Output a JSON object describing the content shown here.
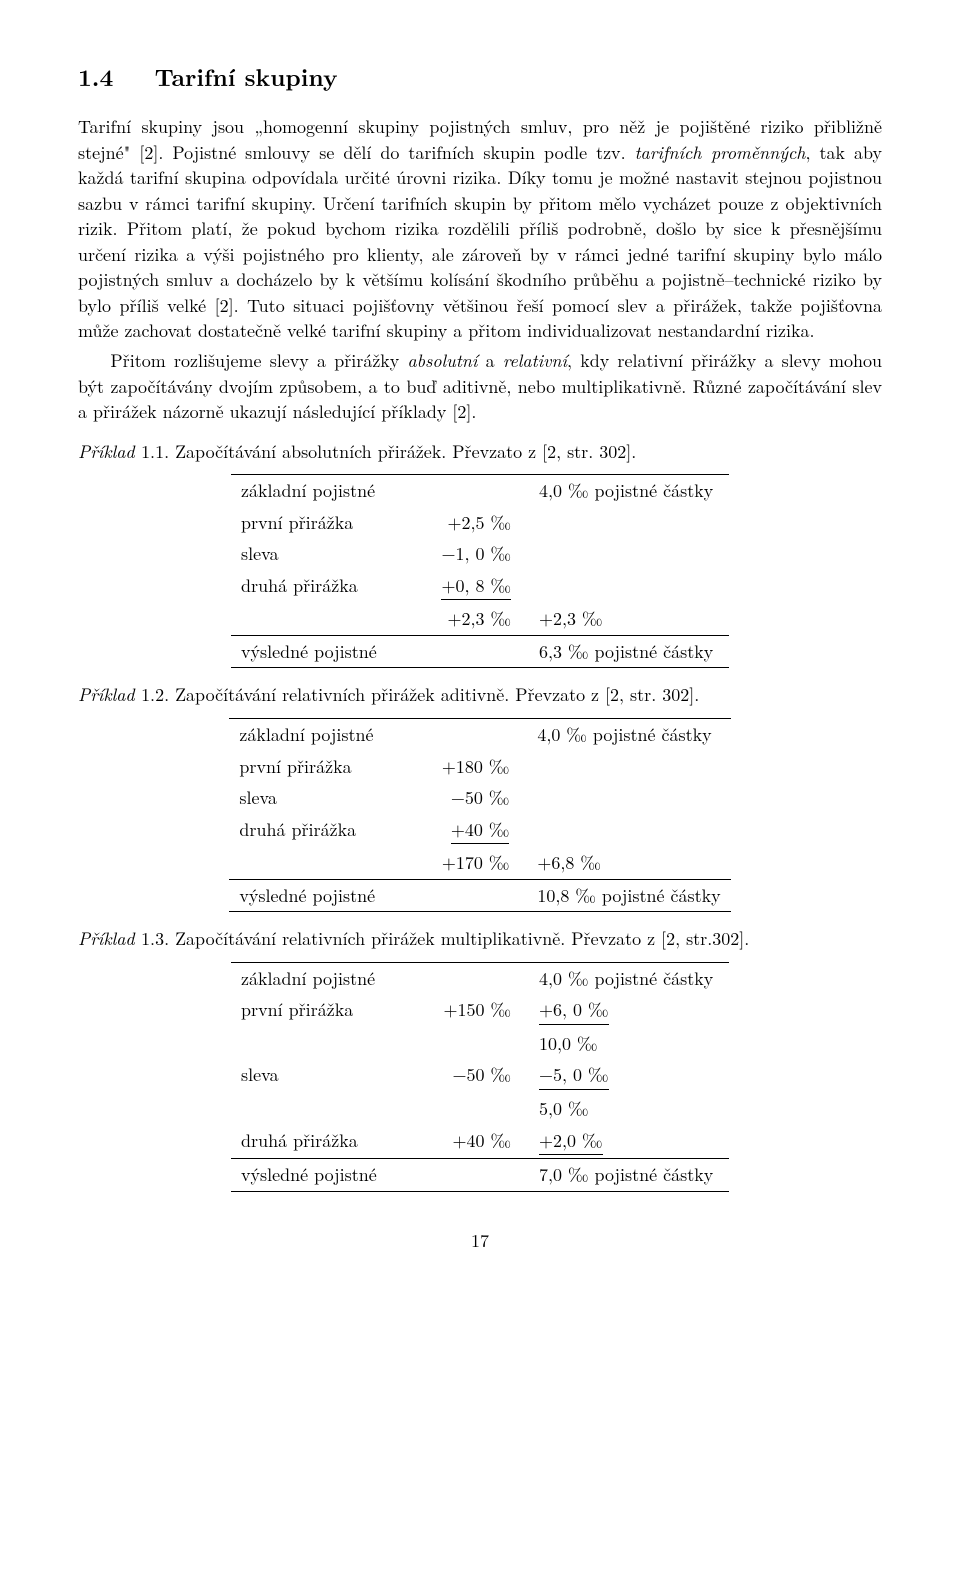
{
  "section": {
    "number": "1.4",
    "title": "Tarifní skupiny"
  },
  "body": {
    "p1": "Tarifní skupiny jsou „homogenní skupiny pojistných smluv, pro něž je pojištěné riziko přibližně stejné\" [2]. Pojistné smlouvy se dělí do tarifních skupin podle tzv. ",
    "p1_em": "tarifních proměnných",
    "p1_cont": ", tak aby každá tarifní skupina odpovídala určité úrovni rizika. Díky tomu je možné nastavit stejnou pojistnou sazbu v rámci tarifní skupiny. Určení tarifních skupin by přitom mělo vycházet pouze z objektivních rizik. Přitom platí, že pokud bychom rizika rozdělili příliš podrobně, došlo by sice k přesnějšímu určení rizika a výši pojistného pro klienty, ale zároveň by v rámci jedné tarifní skupiny bylo málo pojistných smluv a docházelo by k většímu kolísání škodního průběhu a pojistně–technické riziko by bylo příliš velké [2]. Tuto situaci pojišťovny většinou řeší pomocí slev a přirážek, takže pojišťovna může zachovat dostatečně velké tarifní skupiny a přitom individualizovat nestandardní rizika.",
    "p2_a": "Přitom rozlišujeme slevy a přirážky ",
    "p2_em1": "absolutní",
    "p2_b": " a ",
    "p2_em2": "relativní",
    "p2_c": ", kdy relativní přirážky a slevy mohou být započítávány dvojím způsobem, a to buď aditivně, nebo multiplikativně. Různé započítávání slev a přirážek názorně ukazují následující příklady [2]."
  },
  "examples": {
    "ex1": {
      "label_it": "Příklad ",
      "label_up": "1.1. Započítávání absolutních přirážek. Převzato z [2, str. 302].",
      "rows": {
        "r1c1": "základní pojistné",
        "r1c2": "",
        "r1c3": "4,0 ‰ pojistné částky",
        "r2c1": "první přirážka",
        "r2c2": "+2,5 ‰",
        "r2c3": "",
        "r3c1": "sleva",
        "r3c2": "−1, 0 ‰",
        "r3c3": "",
        "r4c1": "druhá přirážka",
        "r4c2": "+0, 8 ‰",
        "r4c3": "",
        "r5c1": "",
        "r5c2": "+2,3 ‰",
        "r5c3": "+2,3 ‰",
        "r6c1": "výsledné pojistné",
        "r6c2": "",
        "r6c3": "6,3 ‰ pojistné částky"
      }
    },
    "ex2": {
      "label_it": "Příklad ",
      "label_up": "1.2. Započítávání relativních přirážek aditivně. Převzato z [2, str. 302].",
      "rows": {
        "r1c1": "základní pojistné",
        "r1c2": "",
        "r1c3": "4,0 ‰ pojistné částky",
        "r2c1": "první přirážka",
        "r2c2": "+180 ‰",
        "r2c3": "",
        "r3c1": "sleva",
        "r3c2": "−50 ‰",
        "r3c3": "",
        "r4c1": "druhá přirážka",
        "r4c2": "+40 ‰",
        "r4c3": "",
        "r5c1": "",
        "r5c2": "+170 ‰",
        "r5c3": "+6,8 ‰",
        "r6c1": "výsledné pojistné",
        "r6c2": "",
        "r6c3": "10,8 ‰ pojistné částky"
      }
    },
    "ex3": {
      "label_it": "Příklad ",
      "label_up": "1.3. Započítávání relativních přirážek multiplikativně. Převzato z [2, str.302].",
      "rows": {
        "r1c1": "základní pojistné",
        "r1c2": "",
        "r1c3": "4,0 ‰ pojistné částky",
        "r2c1": "první přirážka",
        "r2c2": "+150 ‰",
        "r2c3": "+6, 0 ‰",
        "r3c1": "",
        "r3c2": "",
        "r3c3": "10,0 ‰",
        "r4c1": "sleva",
        "r4c2": "−50 ‰",
        "r4c3": "−5, 0 ‰",
        "r5c1": "",
        "r5c2": "",
        "r5c3": "5,0 ‰",
        "r6c1": "druhá přirážka",
        "r6c2": "+40 ‰",
        "r6c3": "+2,0 ‰",
        "r7c1": "výsledné pojistné",
        "r7c2": "",
        "r7c3": "7,0 ‰ pojistné částky"
      }
    }
  },
  "page_number": "17"
}
